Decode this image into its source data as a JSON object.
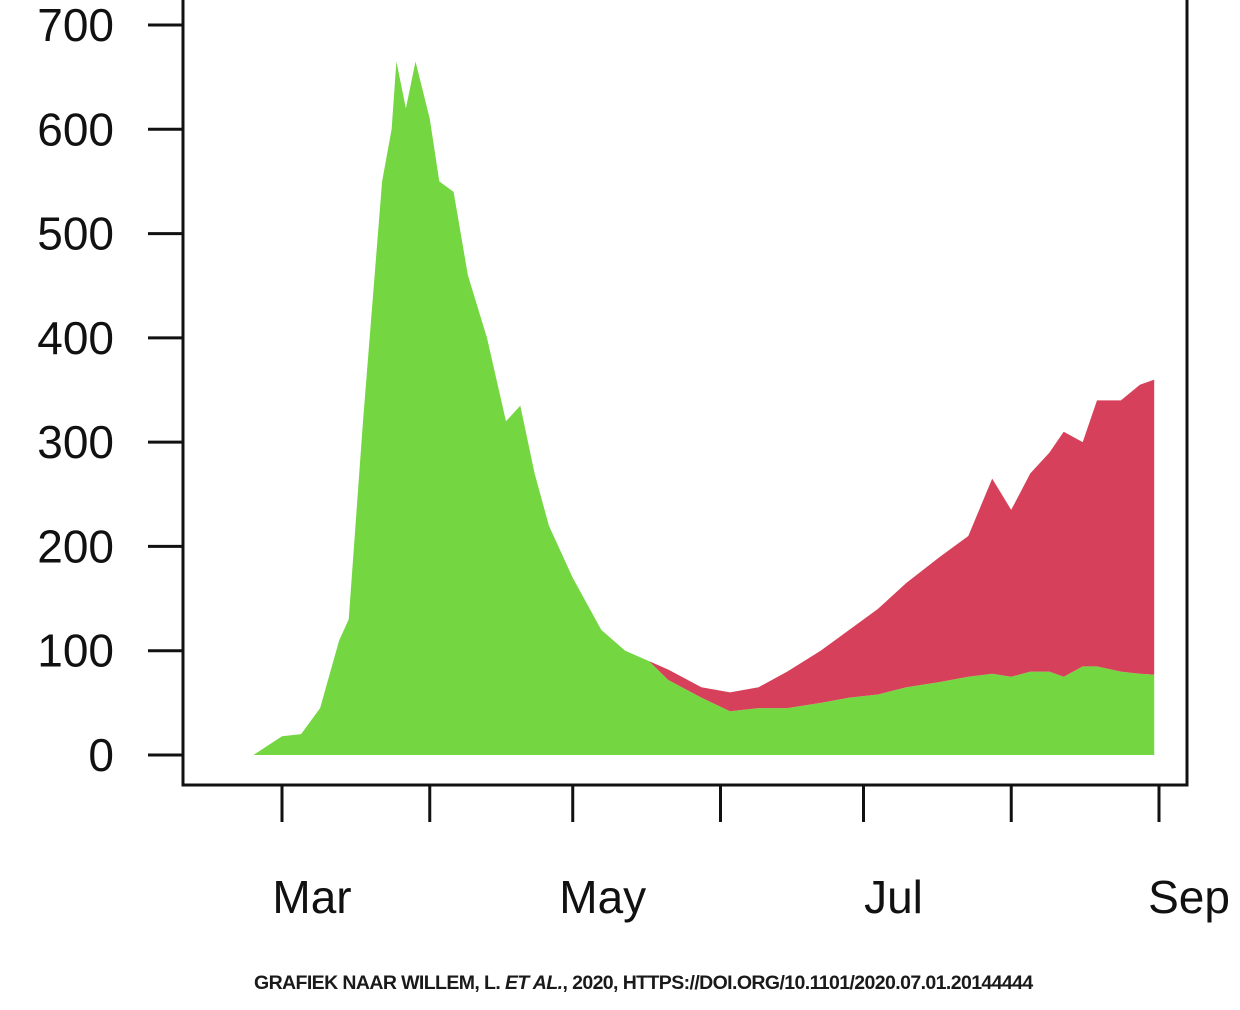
{
  "chart_data": {
    "type": "area",
    "title": "",
    "xlabel": "",
    "ylabel": "",
    "ylim": [
      0,
      700
    ],
    "xlim": [
      "2020-02-10",
      "2020-09-06"
    ],
    "yticks": [
      0,
      100,
      200,
      300,
      400,
      500,
      600,
      700
    ],
    "xticks": [
      "2020-03-01",
      "2020-04-01",
      "2020-05-01",
      "2020-06-01",
      "2020-07-01",
      "2020-08-01",
      "2020-09-01"
    ],
    "xtick_labels": [
      {
        "date": "2020-03-01",
        "label": "Mar"
      },
      {
        "date": "2020-05-01",
        "label": "May"
      },
      {
        "date": "2020-07-01",
        "label": "Jul"
      },
      {
        "date": "2020-09-01",
        "label": "Sep"
      }
    ],
    "stacked": true,
    "grid": false,
    "colors": {
      "green": "#74d742",
      "red": "#d6405a"
    },
    "x": [
      "2020-02-24",
      "2020-03-01",
      "2020-03-05",
      "2020-03-09",
      "2020-03-13",
      "2020-03-15",
      "2020-03-18",
      "2020-03-22",
      "2020-03-24",
      "2020-03-25",
      "2020-03-27",
      "2020-03-29",
      "2020-04-01",
      "2020-04-03",
      "2020-04-06",
      "2020-04-09",
      "2020-04-13",
      "2020-04-17",
      "2020-04-20",
      "2020-04-23",
      "2020-04-26",
      "2020-05-01",
      "2020-05-07",
      "2020-05-12",
      "2020-05-17",
      "2020-05-21",
      "2020-05-28",
      "2020-06-03",
      "2020-06-09",
      "2020-06-15",
      "2020-06-22",
      "2020-06-28",
      "2020-07-04",
      "2020-07-10",
      "2020-07-17",
      "2020-07-23",
      "2020-07-28",
      "2020-08-01",
      "2020-08-05",
      "2020-08-09",
      "2020-08-12",
      "2020-08-16",
      "2020-08-19",
      "2020-08-24",
      "2020-08-28",
      "2020-08-31"
    ],
    "series": [
      {
        "color": "green",
        "values": [
          0,
          18,
          20,
          45,
          110,
          130,
          320,
          550,
          600,
          665,
          620,
          665,
          610,
          550,
          540,
          460,
          400,
          320,
          335,
          270,
          220,
          170,
          120,
          100,
          90,
          72,
          55,
          42,
          45,
          45,
          50,
          55,
          58,
          65,
          70,
          75,
          78,
          75,
          80,
          80,
          75,
          85,
          85,
          80,
          78,
          77
        ]
      },
      {
        "color": "red",
        "values": [
          0,
          0,
          0,
          0,
          0,
          0,
          0,
          0,
          0,
          0,
          0,
          0,
          0,
          0,
          0,
          0,
          0,
          0,
          0,
          0,
          0,
          0,
          0,
          0,
          0,
          10,
          10,
          18,
          20,
          35,
          50,
          65,
          82,
          100,
          120,
          135,
          187,
          160,
          190,
          210,
          235,
          215,
          255,
          260,
          277,
          283
        ]
      }
    ]
  },
  "caption": {
    "prefix": "GRAFIEK NAAR WILLEM, L. ",
    "italic": "ET AL.",
    "suffix": ", 2020, HTTPS://DOI.ORG/10.1101/2020.07.01.20144444"
  }
}
